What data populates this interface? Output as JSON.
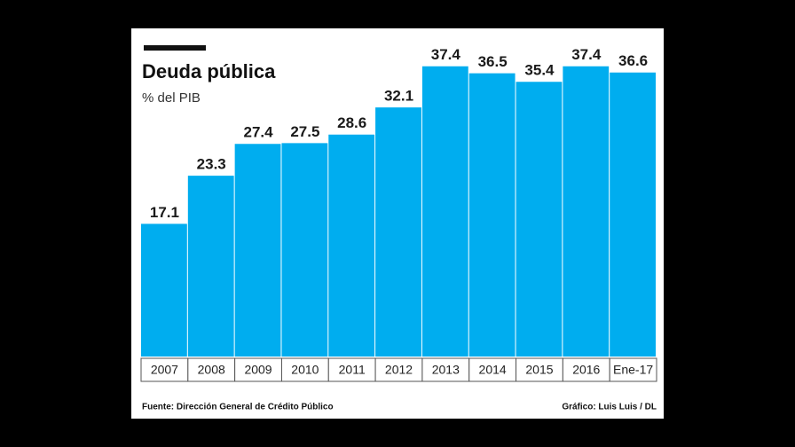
{
  "chart_data": {
    "type": "bar",
    "title": "Deuda pública",
    "subtitle": "% del PIB",
    "categories": [
      "2007",
      "2008",
      "2009",
      "2010",
      "2011",
      "2012",
      "2013",
      "2014",
      "2015",
      "2016",
      "Ene-17"
    ],
    "values": [
      17.1,
      23.3,
      27.4,
      27.5,
      28.6,
      32.1,
      37.4,
      36.5,
      35.4,
      37.4,
      36.6
    ],
    "color": "#00adef",
    "ylim": [
      0,
      40
    ],
    "source": "Fuente: Dirección General de Crédito Público",
    "credit": "Gráfico: Luis Luis / DL"
  }
}
